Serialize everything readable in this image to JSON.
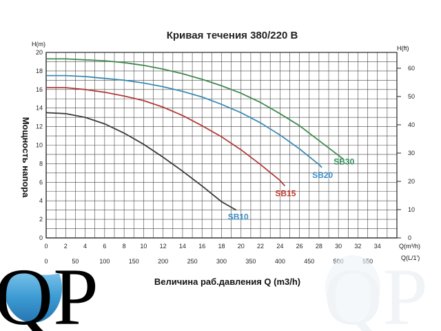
{
  "logo": {
    "text": "QP",
    "colors": {
      "water": "#2a7fb8",
      "water_light": "#8fd0f2",
      "ink": "#000000"
    }
  },
  "chart_data": {
    "type": "line",
    "title": "Кривая течения 380/220 B",
    "xlabel": "Величина раб.давления Q (m3/h)",
    "ylabel": "Мощность напора",
    "left_axis_unit": "H(m)",
    "right_axis_unit": "H(ft)",
    "x_unit_primary": "Q(m³/h)",
    "x_unit_secondary": "Q(L/1')",
    "xlim": [
      0,
      36
    ],
    "ylim": [
      0,
      20
    ],
    "y2lim": [
      0,
      65.6
    ],
    "grid": true,
    "x_ticks": [
      "0",
      "2",
      "4",
      "6",
      "8",
      "10",
      "12",
      "14",
      "16",
      "18",
      "20",
      "22",
      "24",
      "26",
      "28",
      "30",
      "32",
      "34"
    ],
    "y_ticks": [
      "0",
      "2",
      "4",
      "6",
      "8",
      "10",
      "12",
      "14",
      "16",
      "18",
      "20"
    ],
    "y2_ticks": [
      "0",
      "10",
      "20",
      "30",
      "40",
      "50",
      "60"
    ],
    "x2_ticks": [
      "0",
      "50",
      "100",
      "150",
      "200",
      "250",
      "300",
      "350",
      "400",
      "450",
      "500",
      "550"
    ],
    "series": [
      {
        "name": "SB10",
        "color": "#3a3a3a",
        "label_color": "#3b8cc6",
        "x": [
          0,
          2,
          4,
          6,
          8,
          10,
          12,
          14,
          16,
          18,
          19.5
        ],
        "y": [
          13.5,
          13.4,
          13.0,
          12.3,
          11.3,
          10.1,
          8.7,
          7.2,
          5.6,
          3.9,
          3.0
        ]
      },
      {
        "name": "SB15",
        "color": "#b33a38",
        "label_color": "#c0392b",
        "x": [
          0,
          2,
          4,
          6,
          8,
          10,
          12,
          14,
          16,
          18,
          20,
          22,
          24,
          24.5
        ],
        "y": [
          16.2,
          16.2,
          16.0,
          15.7,
          15.3,
          14.8,
          14.1,
          13.2,
          12.1,
          10.9,
          9.5,
          7.9,
          6.2,
          5.6
        ]
      },
      {
        "name": "SB20",
        "color": "#3a8bb5",
        "label_color": "#3b8cc6",
        "x": [
          0,
          2,
          4,
          6,
          8,
          10,
          12,
          14,
          16,
          18,
          20,
          22,
          24,
          26,
          28,
          28.3
        ],
        "y": [
          17.5,
          17.5,
          17.4,
          17.2,
          17.0,
          16.7,
          16.3,
          15.8,
          15.2,
          14.4,
          13.5,
          12.4,
          11.1,
          9.6,
          7.9,
          7.6
        ]
      },
      {
        "name": "SB30",
        "color": "#3f8a4e",
        "label_color": "#2e8b57",
        "x": [
          0,
          2,
          4,
          6,
          8,
          10,
          12,
          14,
          16,
          18,
          20,
          22,
          24,
          26,
          28,
          30,
          30.5
        ],
        "y": [
          19.3,
          19.3,
          19.2,
          19.1,
          18.9,
          18.6,
          18.2,
          17.7,
          17.1,
          16.4,
          15.6,
          14.6,
          13.4,
          12.1,
          10.5,
          8.9,
          8.5
        ]
      }
    ]
  }
}
